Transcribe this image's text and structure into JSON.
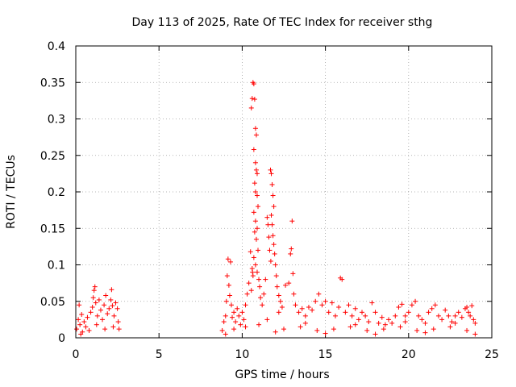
{
  "chart_data": {
    "type": "scatter",
    "title": "Day 113 of 2025, Rate Of TEC Index for receiver sthg",
    "xlabel": "GPS time / hours",
    "ylabel": "ROTI / TECUs",
    "xlim": [
      0,
      25
    ],
    "ylim": [
      0,
      0.4
    ],
    "xticks": [
      0,
      5,
      10,
      15,
      20,
      25
    ],
    "xtick_labels": [
      "0",
      "5",
      "10",
      "15",
      "20",
      "25"
    ],
    "yticks": [
      0,
      0.05,
      0.1,
      0.15,
      0.2,
      0.25,
      0.3,
      0.35,
      0.4
    ],
    "ytick_labels": [
      "0",
      "0.05",
      "0.1",
      "0.15",
      "0.2",
      "0.25",
      "0.3",
      "0.35",
      "0.4"
    ],
    "grid": true,
    "marker": "+",
    "marker_color": "#ff0000",
    "series": [
      {
        "name": "ROTI",
        "points": [
          [
            0.05,
            0.012
          ],
          [
            0.15,
            0.025
          ],
          [
            0.2,
            0.045
          ],
          [
            0.25,
            0.018
          ],
          [
            0.35,
            0.032
          ],
          [
            0.4,
            0.008
          ],
          [
            0.5,
            0.022
          ],
          [
            0.6,
            0.015
          ],
          [
            0.7,
            0.028
          ],
          [
            0.8,
            0.01
          ],
          [
            0.9,
            0.035
          ],
          [
            1.0,
            0.042
          ],
          [
            1.05,
            0.055
          ],
          [
            1.1,
            0.065
          ],
          [
            1.15,
            0.07
          ],
          [
            1.2,
            0.048
          ],
          [
            1.3,
            0.03
          ],
          [
            1.4,
            0.052
          ],
          [
            1.5,
            0.038
          ],
          [
            1.6,
            0.025
          ],
          [
            1.7,
            0.045
          ],
          [
            1.8,
            0.058
          ],
          [
            1.9,
            0.033
          ],
          [
            2.0,
            0.04
          ],
          [
            2.1,
            0.052
          ],
          [
            2.15,
            0.066
          ],
          [
            2.2,
            0.044
          ],
          [
            2.3,
            0.03
          ],
          [
            2.4,
            0.048
          ],
          [
            2.5,
            0.04
          ],
          [
            2.55,
            0.022
          ],
          [
            2.6,
            0.012
          ],
          [
            0.3,
            0.005
          ],
          [
            1.25,
            0.018
          ],
          [
            1.75,
            0.012
          ],
          [
            2.25,
            0.015
          ],
          [
            8.8,
            0.01
          ],
          [
            8.9,
            0.022
          ],
          [
            9.0,
            0.03
          ],
          [
            9.05,
            0.05
          ],
          [
            9.1,
            0.085
          ],
          [
            9.15,
            0.108
          ],
          [
            9.2,
            0.072
          ],
          [
            9.25,
            0.058
          ],
          [
            9.3,
            0.104
          ],
          [
            9.35,
            0.045
          ],
          [
            9.4,
            0.028
          ],
          [
            9.5,
            0.035
          ],
          [
            9.6,
            0.022
          ],
          [
            9.7,
            0.04
          ],
          [
            9.8,
            0.03
          ],
          [
            9.9,
            0.018
          ],
          [
            10.0,
            0.035
          ],
          [
            10.1,
            0.025
          ],
          [
            10.2,
            0.045
          ],
          [
            10.3,
            0.06
          ],
          [
            10.4,
            0.075
          ],
          [
            10.5,
            0.118
          ],
          [
            10.55,
            0.315
          ],
          [
            10.6,
            0.328
          ],
          [
            10.65,
            0.35
          ],
          [
            10.7,
            0.348
          ],
          [
            10.75,
            0.327
          ],
          [
            10.8,
            0.287
          ],
          [
            10.85,
            0.278
          ],
          [
            10.7,
            0.258
          ],
          [
            10.8,
            0.24
          ],
          [
            10.85,
            0.23
          ],
          [
            10.9,
            0.225
          ],
          [
            10.75,
            0.212
          ],
          [
            10.8,
            0.2
          ],
          [
            10.9,
            0.195
          ],
          [
            10.95,
            0.18
          ],
          [
            10.7,
            0.172
          ],
          [
            10.8,
            0.16
          ],
          [
            10.9,
            0.15
          ],
          [
            10.75,
            0.145
          ],
          [
            10.85,
            0.135
          ],
          [
            10.95,
            0.12
          ],
          [
            10.7,
            0.11
          ],
          [
            10.8,
            0.1
          ],
          [
            10.9,
            0.09
          ],
          [
            11.0,
            0.08
          ],
          [
            10.6,
            0.095
          ],
          [
            10.65,
            0.085
          ],
          [
            11.05,
            0.07
          ],
          [
            11.1,
            0.055
          ],
          [
            11.2,
            0.045
          ],
          [
            11.3,
            0.06
          ],
          [
            11.4,
            0.08
          ],
          [
            11.5,
            0.165
          ],
          [
            11.55,
            0.155
          ],
          [
            11.6,
            0.138
          ],
          [
            11.65,
            0.12
          ],
          [
            11.7,
            0.23
          ],
          [
            11.75,
            0.225
          ],
          [
            11.8,
            0.21
          ],
          [
            11.85,
            0.195
          ],
          [
            11.9,
            0.18
          ],
          [
            11.75,
            0.168
          ],
          [
            11.8,
            0.155
          ],
          [
            11.85,
            0.14
          ],
          [
            11.9,
            0.128
          ],
          [
            11.95,
            0.115
          ],
          [
            12.0,
            0.1
          ],
          [
            12.05,
            0.085
          ],
          [
            12.1,
            0.07
          ],
          [
            12.2,
            0.058
          ],
          [
            12.3,
            0.05
          ],
          [
            12.4,
            0.042
          ],
          [
            12.6,
            0.072
          ],
          [
            12.8,
            0.075
          ],
          [
            12.9,
            0.115
          ],
          [
            12.95,
            0.122
          ],
          [
            13.0,
            0.16
          ],
          [
            13.05,
            0.088
          ],
          [
            13.1,
            0.06
          ],
          [
            13.2,
            0.045
          ],
          [
            13.4,
            0.035
          ],
          [
            13.6,
            0.04
          ],
          [
            13.8,
            0.03
          ],
          [
            14.0,
            0.042
          ],
          [
            14.2,
            0.038
          ],
          [
            14.4,
            0.05
          ],
          [
            14.6,
            0.06
          ],
          [
            14.8,
            0.045
          ],
          [
            15.0,
            0.05
          ],
          [
            15.2,
            0.035
          ],
          [
            15.4,
            0.048
          ],
          [
            15.6,
            0.03
          ],
          [
            15.8,
            0.042
          ],
          [
            15.9,
            0.082
          ],
          [
            16.0,
            0.08
          ],
          [
            16.2,
            0.035
          ],
          [
            16.4,
            0.045
          ],
          [
            16.6,
            0.03
          ],
          [
            16.8,
            0.04
          ],
          [
            17.0,
            0.025
          ],
          [
            17.2,
            0.035
          ],
          [
            17.4,
            0.03
          ],
          [
            17.6,
            0.022
          ],
          [
            17.8,
            0.048
          ],
          [
            18.0,
            0.035
          ],
          [
            18.2,
            0.02
          ],
          [
            18.4,
            0.028
          ],
          [
            18.6,
            0.018
          ],
          [
            18.8,
            0.025
          ],
          [
            19.0,
            0.02
          ],
          [
            19.2,
            0.03
          ],
          [
            19.4,
            0.042
          ],
          [
            19.6,
            0.046
          ],
          [
            19.8,
            0.03
          ],
          [
            20.0,
            0.035
          ],
          [
            20.2,
            0.045
          ],
          [
            20.4,
            0.05
          ],
          [
            20.6,
            0.03
          ],
          [
            20.8,
            0.025
          ],
          [
            21.0,
            0.02
          ],
          [
            21.2,
            0.035
          ],
          [
            21.4,
            0.04
          ],
          [
            21.6,
            0.045
          ],
          [
            21.8,
            0.03
          ],
          [
            22.0,
            0.025
          ],
          [
            22.2,
            0.038
          ],
          [
            22.4,
            0.03
          ],
          [
            22.6,
            0.022
          ],
          [
            22.8,
            0.03
          ],
          [
            23.0,
            0.035
          ],
          [
            23.2,
            0.028
          ],
          [
            23.4,
            0.04
          ],
          [
            23.5,
            0.042
          ],
          [
            23.6,
            0.035
          ],
          [
            23.7,
            0.03
          ],
          [
            23.8,
            0.044
          ],
          [
            23.9,
            0.025
          ],
          [
            24.0,
            0.02
          ],
          [
            9.5,
            0.012
          ],
          [
            10.2,
            0.015
          ],
          [
            11.0,
            0.018
          ],
          [
            12.5,
            0.012
          ],
          [
            13.5,
            0.015
          ],
          [
            14.5,
            0.01
          ],
          [
            15.5,
            0.012
          ],
          [
            16.5,
            0.015
          ],
          [
            17.5,
            0.01
          ],
          [
            18.5,
            0.012
          ],
          [
            19.5,
            0.015
          ],
          [
            20.5,
            0.01
          ],
          [
            21.5,
            0.012
          ],
          [
            22.5,
            0.015
          ],
          [
            23.5,
            0.01
          ],
          [
            9.0,
            0.005
          ],
          [
            12.0,
            0.008
          ],
          [
            15.0,
            0.006
          ],
          [
            18.0,
            0.005
          ],
          [
            21.0,
            0.007
          ],
          [
            24.0,
            0.005
          ],
          [
            11.5,
            0.025
          ],
          [
            12.2,
            0.035
          ],
          [
            13.8,
            0.02
          ],
          [
            16.8,
            0.018
          ],
          [
            19.8,
            0.022
          ],
          [
            22.8,
            0.02
          ],
          [
            10.55,
            0.065
          ],
          [
            10.62,
            0.09
          ],
          [
            11.72,
            0.105
          ]
        ]
      }
    ]
  }
}
